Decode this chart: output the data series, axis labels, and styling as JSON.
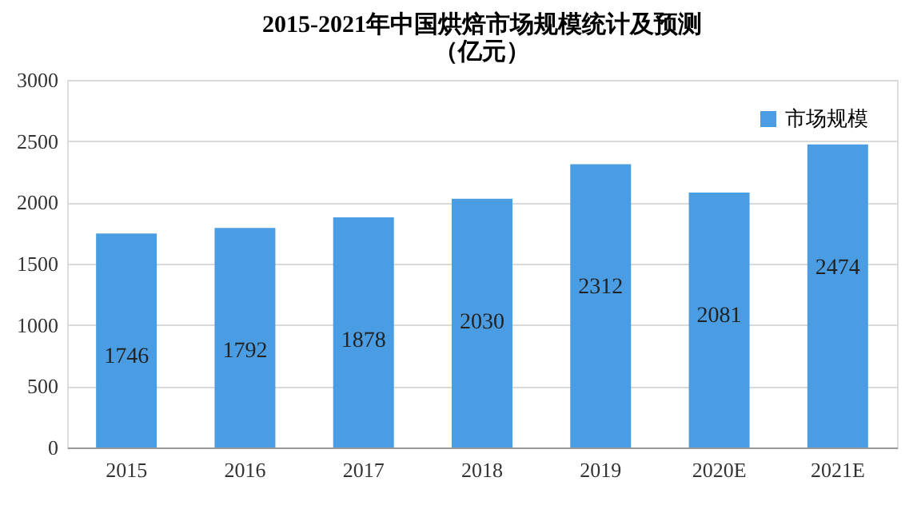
{
  "chart_data": {
    "type": "bar",
    "title": "2015-2021年中国烘焙市场规模统计及预测（亿元）",
    "categories": [
      "2015",
      "2016",
      "2017",
      "2018",
      "2019",
      "2020E",
      "2021E"
    ],
    "series": [
      {
        "name": "市场规模",
        "color": "#4a9de2",
        "values": [
          1746,
          1792,
          1878,
          2030,
          2312,
          2081,
          2474
        ]
      }
    ],
    "ylim": [
      0,
      3000
    ],
    "yticks": [
      0,
      500,
      1000,
      1500,
      2000,
      2500,
      3000
    ],
    "grid": "y",
    "legend": "top right",
    "data_labels": true
  }
}
